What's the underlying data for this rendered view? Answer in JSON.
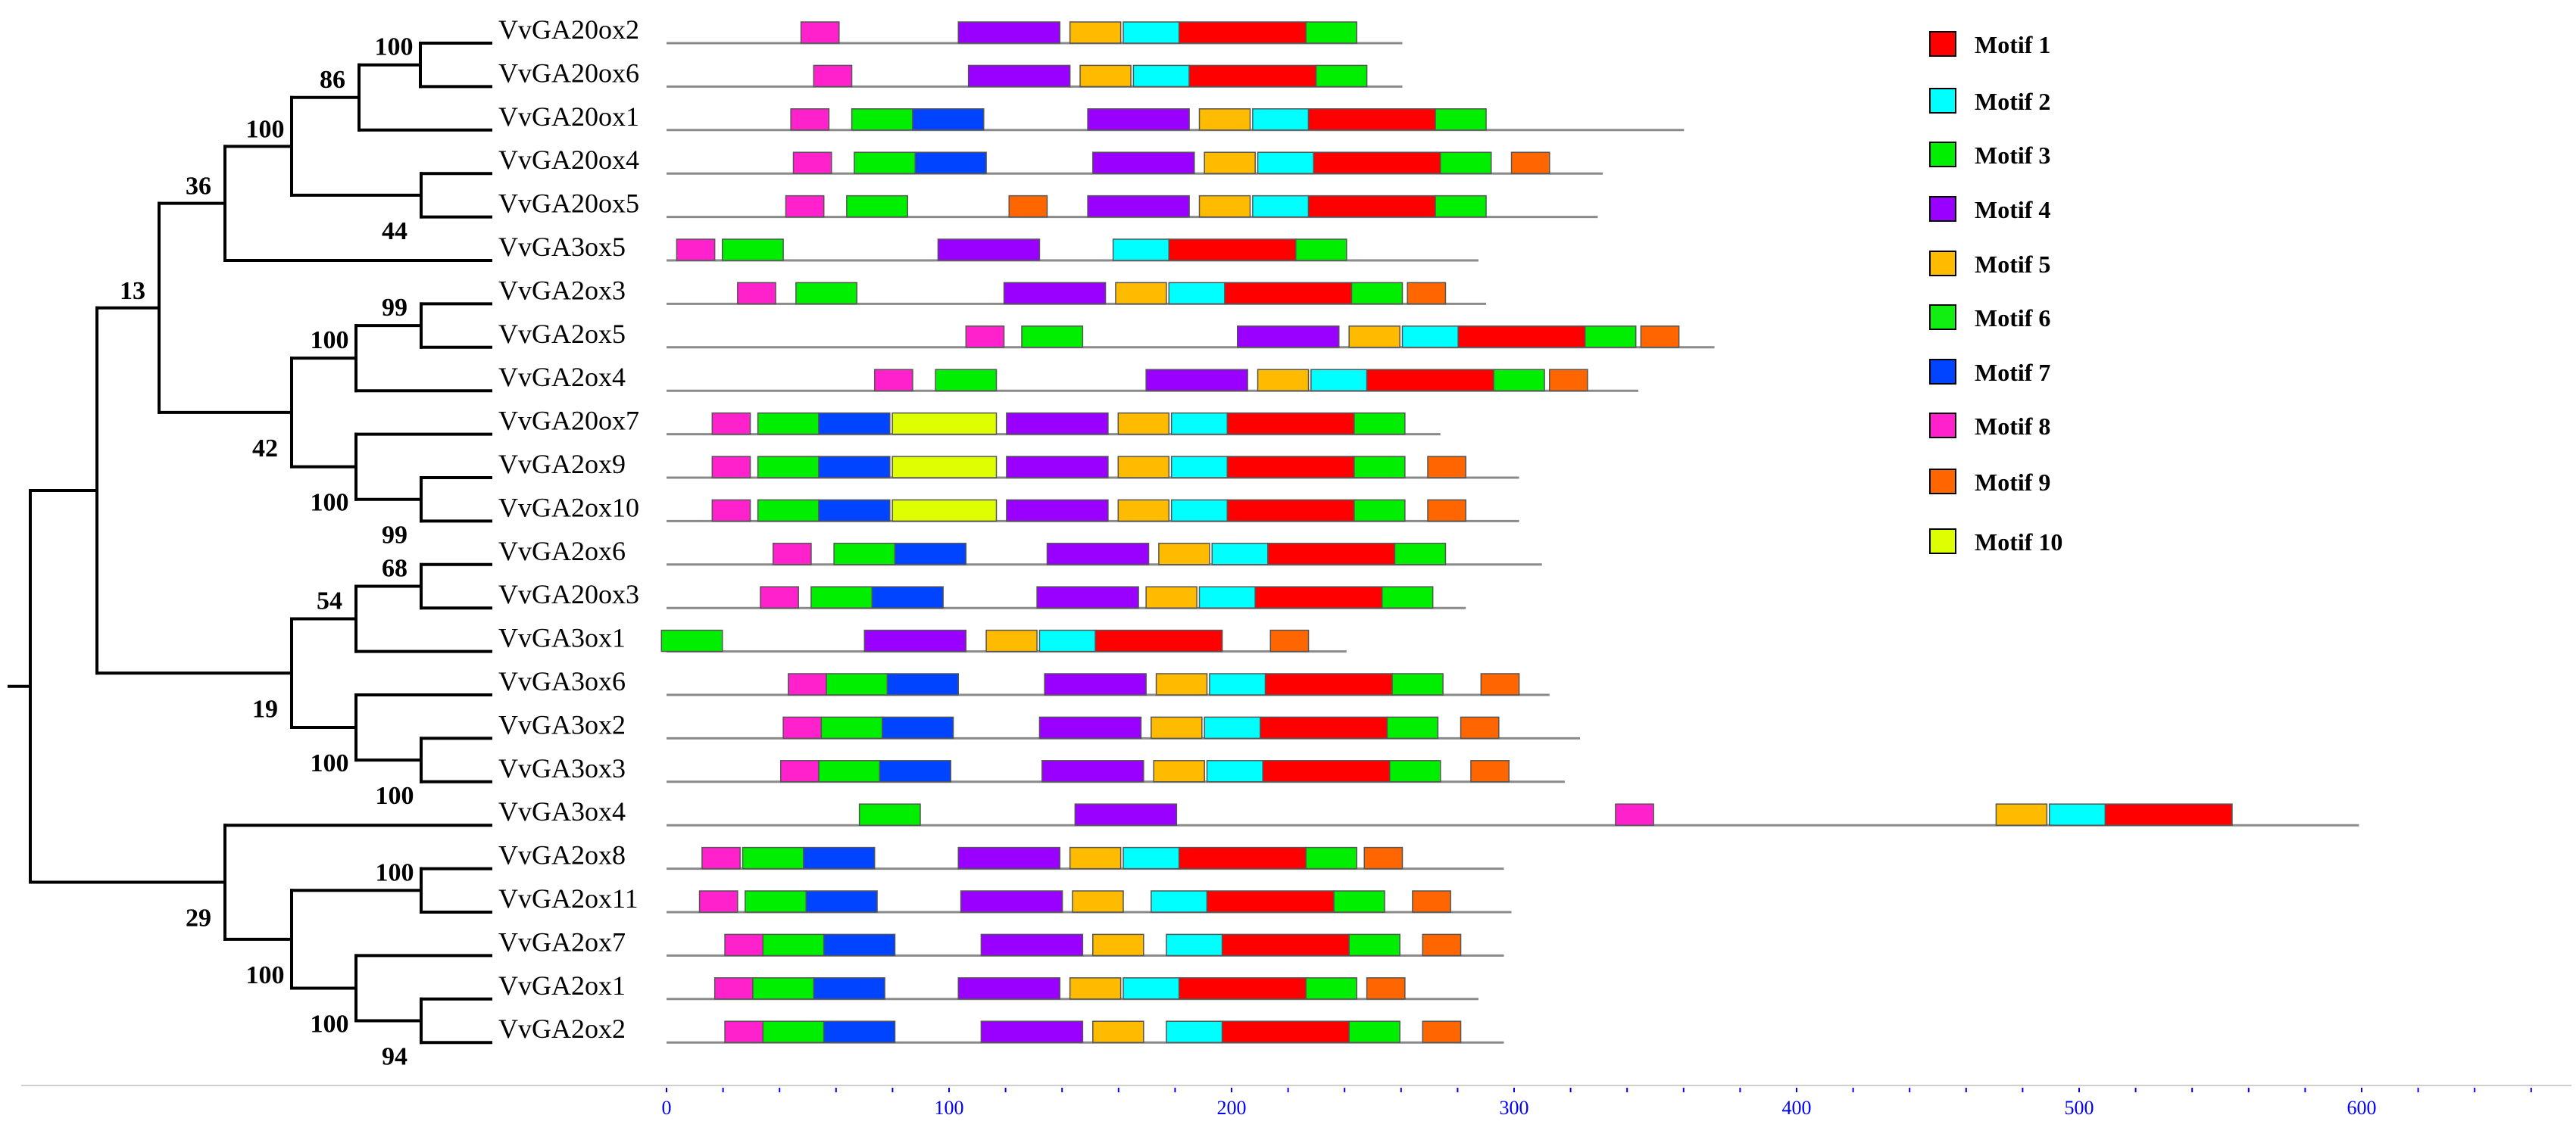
{
  "motifs": [
    {
      "id": 1,
      "label": "Motif 1",
      "color": "#ff0000"
    },
    {
      "id": 2,
      "label": "Motif 2",
      "color": "#00ffff"
    },
    {
      "id": 3,
      "label": "Motif 3",
      "color": "#00ee00"
    },
    {
      "id": 4,
      "label": "Motif 4",
      "color": "#9900ff"
    },
    {
      "id": 5,
      "label": "Motif 5",
      "color": "#ffbb00"
    },
    {
      "id": 6,
      "label": "Motif 6",
      "color": "#11ee11"
    },
    {
      "id": 7,
      "label": "Motif 7",
      "color": "#0044ff"
    },
    {
      "id": 8,
      "label": "Motif 8",
      "color": "#ff22cc"
    },
    {
      "id": 9,
      "label": "Motif 9",
      "color": "#ff6600"
    },
    {
      "id": 10,
      "label": "Motif 10",
      "color": "#ddff00"
    }
  ],
  "axis": {
    "min": 0,
    "max": 660,
    "major_ticks": [
      0,
      100,
      200,
      300,
      400,
      500,
      600
    ],
    "minor_step": 20
  },
  "genes": [
    {
      "name": "VvGA20ox2",
      "length": 290,
      "motifs": [
        [
          8,
          53,
          68
        ],
        [
          4,
          115,
          155
        ],
        [
          5,
          159,
          179
        ],
        [
          2,
          180,
          202
        ],
        [
          1,
          202,
          252
        ],
        [
          3,
          252,
          272
        ]
      ]
    },
    {
      "name": "VvGA20ox6",
      "length": 290,
      "motifs": [
        [
          8,
          58,
          73
        ],
        [
          4,
          119,
          159
        ],
        [
          5,
          163,
          183
        ],
        [
          2,
          184,
          206
        ],
        [
          1,
          206,
          256
        ],
        [
          3,
          256,
          276
        ]
      ]
    },
    {
      "name": "VvGA20ox1",
      "length": 401,
      "motifs": [
        [
          8,
          49,
          64
        ],
        [
          3,
          73,
          97
        ],
        [
          7,
          97,
          125
        ],
        [
          4,
          166,
          206
        ],
        [
          5,
          210,
          230
        ],
        [
          2,
          231,
          253
        ],
        [
          1,
          253,
          303
        ],
        [
          3,
          303,
          323
        ]
      ]
    },
    {
      "name": "VvGA20ox4",
      "length": 369,
      "motifs": [
        [
          8,
          50,
          65
        ],
        [
          3,
          74,
          98
        ],
        [
          7,
          98,
          126
        ],
        [
          4,
          168,
          208
        ],
        [
          5,
          212,
          232
        ],
        [
          2,
          233,
          255
        ],
        [
          1,
          255,
          305
        ],
        [
          3,
          305,
          325
        ],
        [
          9,
          333,
          348
        ]
      ]
    },
    {
      "name": "VvGA20ox5",
      "length": 367,
      "motifs": [
        [
          8,
          47,
          62
        ],
        [
          3,
          71,
          95
        ],
        [
          9,
          135,
          150
        ],
        [
          4,
          166,
          206
        ],
        [
          5,
          210,
          230
        ],
        [
          2,
          231,
          253
        ],
        [
          1,
          253,
          303
        ],
        [
          3,
          303,
          323
        ]
      ]
    },
    {
      "name": "VvGA3ox5",
      "length": 320,
      "motifs": [
        [
          8,
          4,
          19
        ],
        [
          3,
          22,
          46
        ],
        [
          4,
          107,
          147
        ],
        [
          2,
          176,
          198
        ],
        [
          1,
          198,
          248
        ],
        [
          3,
          248,
          268
        ]
      ]
    },
    {
      "name": "VvGA2ox3",
      "length": 323,
      "motifs": [
        [
          8,
          28,
          43
        ],
        [
          3,
          51,
          75
        ],
        [
          4,
          133,
          173
        ],
        [
          5,
          177,
          197
        ],
        [
          2,
          198,
          220
        ],
        [
          1,
          220,
          270
        ],
        [
          3,
          270,
          290
        ],
        [
          9,
          292,
          307
        ]
      ]
    },
    {
      "name": "VvGA2ox5",
      "length": 413,
      "motifs": [
        [
          8,
          118,
          133
        ],
        [
          3,
          140,
          164
        ],
        [
          4,
          225,
          265
        ],
        [
          5,
          269,
          289
        ],
        [
          2,
          290,
          312
        ],
        [
          1,
          312,
          362
        ],
        [
          3,
          362,
          382
        ],
        [
          9,
          384,
          399
        ]
      ]
    },
    {
      "name": "VvGA2ox4",
      "length": 383,
      "motifs": [
        [
          8,
          82,
          97
        ],
        [
          3,
          106,
          130
        ],
        [
          4,
          189,
          229
        ],
        [
          5,
          233,
          253
        ],
        [
          2,
          254,
          276
        ],
        [
          1,
          276,
          326
        ],
        [
          3,
          326,
          346
        ],
        [
          9,
          348,
          363
        ]
      ]
    },
    {
      "name": "VvGA20ox7",
      "length": 305,
      "motifs": [
        [
          8,
          18,
          33
        ],
        [
          3,
          36,
          60
        ],
        [
          7,
          60,
          88
        ],
        [
          10,
          89,
          130
        ],
        [
          4,
          134,
          174
        ],
        [
          5,
          178,
          198
        ],
        [
          2,
          199,
          221
        ],
        [
          1,
          221,
          271
        ],
        [
          3,
          271,
          291
        ]
      ]
    },
    {
      "name": "VvGA2ox9",
      "length": 336,
      "motifs": [
        [
          8,
          18,
          33
        ],
        [
          3,
          36,
          60
        ],
        [
          7,
          60,
          88
        ],
        [
          10,
          89,
          130
        ],
        [
          4,
          134,
          174
        ],
        [
          5,
          178,
          198
        ],
        [
          2,
          199,
          221
        ],
        [
          1,
          221,
          271
        ],
        [
          3,
          271,
          291
        ],
        [
          9,
          300,
          315
        ]
      ]
    },
    {
      "name": "VvGA2ox10",
      "length": 336,
      "motifs": [
        [
          8,
          18,
          33
        ],
        [
          3,
          36,
          60
        ],
        [
          7,
          60,
          88
        ],
        [
          10,
          89,
          130
        ],
        [
          4,
          134,
          174
        ],
        [
          5,
          178,
          198
        ],
        [
          2,
          199,
          221
        ],
        [
          1,
          221,
          271
        ],
        [
          3,
          271,
          291
        ],
        [
          9,
          300,
          315
        ]
      ]
    },
    {
      "name": "VvGA2ox6",
      "length": 345,
      "motifs": [
        [
          8,
          42,
          57
        ],
        [
          3,
          66,
          90
        ],
        [
          7,
          90,
          118
        ],
        [
          4,
          150,
          190
        ],
        [
          5,
          194,
          214
        ],
        [
          2,
          215,
          237
        ],
        [
          1,
          237,
          287
        ],
        [
          3,
          287,
          307
        ]
      ]
    },
    {
      "name": "VvGA20ox3",
      "length": 315,
      "motifs": [
        [
          8,
          37,
          52
        ],
        [
          3,
          57,
          81
        ],
        [
          7,
          81,
          109
        ],
        [
          4,
          146,
          186
        ],
        [
          5,
          189,
          209
        ],
        [
          2,
          210,
          232
        ],
        [
          1,
          232,
          282
        ],
        [
          3,
          282,
          302
        ]
      ]
    },
    {
      "name": "VvGA3ox1",
      "length": 268,
      "motifs": [
        [
          3,
          -2,
          22
        ],
        [
          4,
          78,
          118
        ],
        [
          5,
          126,
          146
        ],
        [
          2,
          147,
          169
        ],
        [
          1,
          169,
          219
        ],
        [
          9,
          238,
          253
        ]
      ]
    },
    {
      "name": "VvGA3ox6",
      "length": 348,
      "motifs": [
        [
          8,
          48,
          63
        ],
        [
          3,
          63,
          87
        ],
        [
          7,
          87,
          115
        ],
        [
          4,
          149,
          189
        ],
        [
          5,
          193,
          213
        ],
        [
          2,
          214,
          236
        ],
        [
          1,
          236,
          286
        ],
        [
          3,
          286,
          306
        ],
        [
          9,
          321,
          336
        ]
      ]
    },
    {
      "name": "VvGA3ox2",
      "length": 360,
      "motifs": [
        [
          8,
          46,
          61
        ],
        [
          3,
          61,
          85
        ],
        [
          7,
          85,
          113
        ],
        [
          4,
          147,
          187
        ],
        [
          5,
          191,
          211
        ],
        [
          2,
          212,
          234
        ],
        [
          1,
          234,
          284
        ],
        [
          3,
          284,
          304
        ],
        [
          9,
          313,
          328
        ]
      ]
    },
    {
      "name": "VvGA3ox3",
      "length": 354,
      "motifs": [
        [
          8,
          45,
          60
        ],
        [
          3,
          60,
          84
        ],
        [
          7,
          84,
          112
        ],
        [
          4,
          148,
          188
        ],
        [
          5,
          192,
          212
        ],
        [
          2,
          213,
          235
        ],
        [
          1,
          235,
          285
        ],
        [
          3,
          285,
          305
        ],
        [
          9,
          317,
          332
        ]
      ]
    },
    {
      "name": "VvGA3ox4",
      "length": 667,
      "motifs": [
        [
          3,
          76,
          100
        ],
        [
          4,
          161,
          201
        ],
        [
          8,
          374,
          389
        ],
        [
          5,
          524,
          544
        ],
        [
          2,
          545,
          567
        ],
        [
          1,
          567,
          617
        ]
      ]
    },
    {
      "name": "VvGA2ox8",
      "length": 330,
      "motifs": [
        [
          8,
          14,
          29
        ],
        [
          3,
          30,
          54
        ],
        [
          7,
          54,
          82
        ],
        [
          4,
          115,
          155
        ],
        [
          5,
          159,
          179
        ],
        [
          2,
          180,
          202
        ],
        [
          1,
          202,
          252
        ],
        [
          3,
          252,
          272
        ],
        [
          9,
          275,
          290
        ]
      ]
    },
    {
      "name": "VvGA2ox11",
      "length": 333,
      "motifs": [
        [
          8,
          13,
          28
        ],
        [
          3,
          31,
          55
        ],
        [
          7,
          55,
          83
        ],
        [
          4,
          116,
          156
        ],
        [
          5,
          160,
          180
        ],
        [
          2,
          191,
          213
        ],
        [
          1,
          213,
          263
        ],
        [
          3,
          263,
          283
        ],
        [
          9,
          294,
          309
        ]
      ]
    },
    {
      "name": "VvGA2ox7",
      "length": 330,
      "motifs": [
        [
          8,
          23,
          38
        ],
        [
          3,
          38,
          62
        ],
        [
          7,
          62,
          90
        ],
        [
          4,
          124,
          164
        ],
        [
          5,
          168,
          188
        ],
        [
          2,
          197,
          219
        ],
        [
          1,
          219,
          269
        ],
        [
          3,
          269,
          289
        ],
        [
          9,
          298,
          313
        ]
      ]
    },
    {
      "name": "VvGA2ox1",
      "length": 320,
      "motifs": [
        [
          8,
          19,
          34
        ],
        [
          3,
          34,
          58
        ],
        [
          7,
          58,
          86
        ],
        [
          4,
          115,
          155
        ],
        [
          5,
          159,
          179
        ],
        [
          2,
          180,
          202
        ],
        [
          1,
          202,
          252
        ],
        [
          3,
          252,
          272
        ],
        [
          9,
          276,
          291
        ]
      ]
    },
    {
      "name": "VvGA2ox2",
      "length": 330,
      "motifs": [
        [
          8,
          23,
          38
        ],
        [
          3,
          38,
          62
        ],
        [
          7,
          62,
          90
        ],
        [
          4,
          124,
          164
        ],
        [
          5,
          168,
          188
        ],
        [
          2,
          197,
          219
        ],
        [
          1,
          219,
          269
        ],
        [
          3,
          269,
          289
        ],
        [
          9,
          298,
          313
        ]
      ]
    }
  ],
  "tree_nodes": [
    {
      "id": "n_20ox2_6",
      "children": [
        0,
        1
      ],
      "support": "100"
    },
    {
      "id": "n_86",
      "children": [
        "n_20ox2_6",
        2
      ],
      "support": "86"
    },
    {
      "id": "n_20ox4_5",
      "children": [
        3,
        4
      ],
      "support": "44"
    },
    {
      "id": "n_100a",
      "children": [
        "n_86",
        "n_20ox4_5"
      ],
      "support": "100"
    },
    {
      "id": "n_36",
      "children": [
        "n_100a",
        5
      ],
      "support": "36"
    },
    {
      "id": "n_2ox3_5",
      "children": [
        6,
        7
      ],
      "support": "99"
    },
    {
      "id": "n_100b",
      "children": [
        "n_2ox3_5",
        8
      ],
      "support": "100"
    },
    {
      "id": "n_2ox9_10",
      "children": [
        10,
        11
      ],
      "support": "99"
    },
    {
      "id": "n_100c",
      "children": [
        9,
        "n_2ox9_10"
      ],
      "support": "100"
    },
    {
      "id": "n_42",
      "children": [
        "n_100b",
        "n_100c"
      ],
      "support": "42"
    },
    {
      "id": "n_13",
      "children": [
        "n_36",
        "n_42"
      ],
      "support": "13"
    },
    {
      "id": "n_68",
      "children": [
        12,
        13
      ],
      "support": "68"
    },
    {
      "id": "n_54",
      "children": [
        "n_68",
        14
      ],
      "support": "54"
    },
    {
      "id": "n_3ox2_3",
      "children": [
        16,
        17
      ],
      "support": "100"
    },
    {
      "id": "n_100d",
      "children": [
        15,
        "n_3ox2_3"
      ],
      "support": "100"
    },
    {
      "id": "n_19",
      "children": [
        "n_54",
        "n_100d"
      ],
      "support": "19"
    },
    {
      "id": "n_upper",
      "children": [
        "n_13",
        "n_19"
      ],
      "support": ""
    },
    {
      "id": "n_2ox8_11",
      "children": [
        19,
        20
      ],
      "support": "100"
    },
    {
      "id": "n_2ox1_2",
      "children": [
        22,
        23
      ],
      "support": "94"
    },
    {
      "id": "n_100e",
      "children": [
        21,
        "n_2ox1_2"
      ],
      "support": "100"
    },
    {
      "id": "n_100f",
      "children": [
        "n_2ox8_11",
        "n_100e"
      ],
      "support": "100"
    },
    {
      "id": "n_29",
      "children": [
        18,
        "n_100f"
      ],
      "support": "29"
    },
    {
      "id": "root",
      "children": [
        "n_upper",
        "n_29"
      ],
      "support": ""
    }
  ]
}
